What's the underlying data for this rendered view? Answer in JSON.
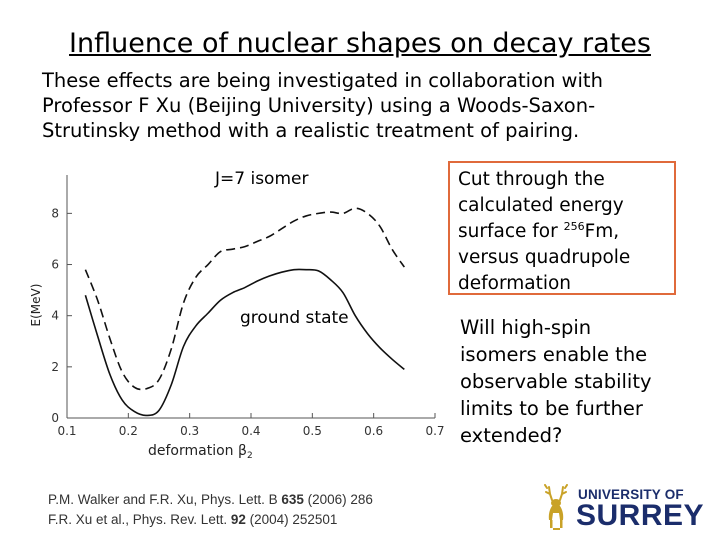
{
  "slide": {
    "title": "Influence  of nuclear shapes on decay rates",
    "intro_lines": [
      "These effects are being investigated in collaboration with",
      "Professor F Xu (Beijing University) using a Woods-Saxon-",
      "Strutinsky method with a realistic treatment of pairing."
    ],
    "callout": {
      "line1": "Cut through the",
      "line2": "calculated energy",
      "line3_prefix": "surface for ",
      "line3_sup": "256",
      "line3_suffix": "Fm,",
      "line4": "versus quadrupole",
      "line5": "deformation"
    },
    "question_lines": [
      "Will high-spin",
      "isomers enable the",
      "observable stability",
      "limits to be further",
      "extended?"
    ],
    "references": {
      "ref1": {
        "authors": "P.M. Walker and F.R. Xu, Phys. Lett. B ",
        "volume": "635",
        "rest": " (2006) 286"
      },
      "ref2": {
        "authors": "F.R. Xu et al., Phys. Rev. Lett. ",
        "volume": "92",
        "rest": " (2004) 252501"
      }
    },
    "logo": {
      "line1": "UNIVERSITY OF",
      "line2": "SURREY",
      "color": "#1b2d6b"
    },
    "callout_border_color": "#e06a3b"
  },
  "chart_data": {
    "type": "line",
    "xlabel": "deformation β",
    "xlabel_sub": "2",
    "ylabel": "E(MeV)",
    "xlim": [
      0.1,
      0.7
    ],
    "ylim": [
      0,
      9.5
    ],
    "x_ticks": [
      "0.1",
      "0.2",
      "0.3",
      "0.4",
      "0.5",
      "0.6",
      "0.7"
    ],
    "y_ticks": [
      "0",
      "2",
      "4",
      "6",
      "8"
    ],
    "grid": false,
    "series": [
      {
        "name": "J=7 isomer",
        "style": "dashed",
        "x": [
          0.13,
          0.15,
          0.17,
          0.19,
          0.21,
          0.23,
          0.25,
          0.27,
          0.29,
          0.31,
          0.33,
          0.35,
          0.37,
          0.39,
          0.41,
          0.43,
          0.45,
          0.47,
          0.49,
          0.51,
          0.53,
          0.55,
          0.57,
          0.59,
          0.61,
          0.63,
          0.65
        ],
        "y": [
          5.8,
          4.6,
          3.1,
          1.8,
          1.2,
          1.15,
          1.5,
          2.7,
          4.5,
          5.5,
          6.0,
          6.5,
          6.6,
          6.7,
          6.9,
          7.1,
          7.4,
          7.7,
          7.9,
          8.0,
          8.05,
          8.0,
          8.2,
          8.0,
          7.5,
          6.6,
          5.9
        ]
      },
      {
        "name": "ground state",
        "style": "solid",
        "x": [
          0.13,
          0.15,
          0.17,
          0.19,
          0.21,
          0.23,
          0.25,
          0.27,
          0.29,
          0.31,
          0.33,
          0.35,
          0.37,
          0.39,
          0.41,
          0.43,
          0.45,
          0.47,
          0.49,
          0.51,
          0.53,
          0.55,
          0.57,
          0.59,
          0.61,
          0.63,
          0.65
        ],
        "y": [
          4.8,
          3.2,
          1.7,
          0.7,
          0.25,
          0.1,
          0.3,
          1.3,
          2.8,
          3.6,
          4.1,
          4.6,
          4.9,
          5.1,
          5.35,
          5.55,
          5.7,
          5.8,
          5.8,
          5.75,
          5.4,
          4.9,
          4.0,
          3.3,
          2.75,
          2.3,
          1.9
        ]
      }
    ]
  }
}
